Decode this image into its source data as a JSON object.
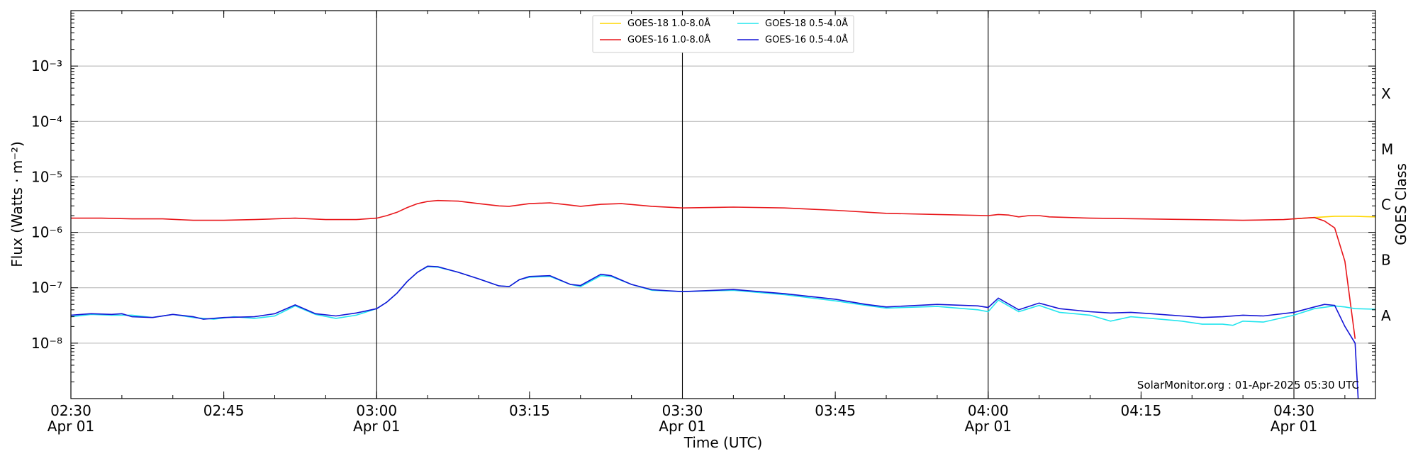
{
  "chart_data": {
    "type": "line",
    "ylabel": "Flux (Watts · m⁻²)",
    "xlabel": "Time (UTC)",
    "right_axis_title": "GOES Class",
    "credit": "SolarMonitor.org : 01-Apr-2025 05:30 UTC",
    "y_scale": "log",
    "ylim": [
      1e-09,
      0.01
    ],
    "y_ticks": [
      {
        "value": 1e-08,
        "label": "10⁻⁸"
      },
      {
        "value": 1e-07,
        "label": "10⁻⁷"
      },
      {
        "value": 1e-06,
        "label": "10⁻⁶"
      },
      {
        "value": 1e-05,
        "label": "10⁻⁵"
      },
      {
        "value": 0.0001,
        "label": "10⁻⁴"
      },
      {
        "value": 0.001,
        "label": "10⁻³"
      }
    ],
    "goes_classes": [
      {
        "label": "A",
        "value": 3.16e-08
      },
      {
        "label": "B",
        "value": 3.16e-07
      },
      {
        "label": "C",
        "value": 3.16e-06
      },
      {
        "label": "M",
        "value": 3.16e-05
      },
      {
        "label": "X",
        "value": 0.000316
      }
    ],
    "xlim": [
      "02:30",
      "04:38"
    ],
    "x_ticks": [
      {
        "time": "02:30",
        "line1": "02:30",
        "line2": "Apr 01"
      },
      {
        "time": "02:45",
        "line1": "02:45",
        "line2": ""
      },
      {
        "time": "03:00",
        "line1": "03:00",
        "line2": "Apr 01"
      },
      {
        "time": "03:15",
        "line1": "03:15",
        "line2": ""
      },
      {
        "time": "03:30",
        "line1": "03:30",
        "line2": "Apr 01"
      },
      {
        "time": "03:45",
        "line1": "03:45",
        "line2": ""
      },
      {
        "time": "04:00",
        "line1": "04:00",
        "line2": "Apr 01"
      },
      {
        "time": "04:15",
        "line1": "04:15",
        "line2": ""
      },
      {
        "time": "04:30",
        "line1": "04:30",
        "line2": "Apr 01"
      }
    ],
    "vertical_lines": [
      "03:00",
      "03:30",
      "04:00",
      "04:30"
    ],
    "grid": "horizontal at each decade",
    "legend_placement": "top-center",
    "series": [
      {
        "name": "GOES-18 1.0-8.0Å",
        "color": "#ffd700",
        "points": [
          [
            "04:30",
            1.75e-06
          ],
          [
            "04:31",
            1.8e-06
          ],
          [
            "04:32",
            1.85e-06
          ],
          [
            "04:33",
            1.9e-06
          ],
          [
            "04:34",
            1.95e-06
          ],
          [
            "04:35",
            1.95e-06
          ],
          [
            "04:36",
            1.95e-06
          ],
          [
            "04:37",
            1.92e-06
          ],
          [
            "04:38",
            1.9e-06
          ]
        ]
      },
      {
        "name": "GOES-16 1.0-8.0Å",
        "color": "#e8161a",
        "points": [
          [
            "02:30",
            1.8e-06
          ],
          [
            "02:33",
            1.8e-06
          ],
          [
            "02:36",
            1.75e-06
          ],
          [
            "02:39",
            1.75e-06
          ],
          [
            "02:42",
            1.65e-06
          ],
          [
            "02:45",
            1.65e-06
          ],
          [
            "02:48",
            1.7e-06
          ],
          [
            "02:50",
            1.75e-06
          ],
          [
            "02:52",
            1.8e-06
          ],
          [
            "02:55",
            1.7e-06
          ],
          [
            "02:58",
            1.7e-06
          ],
          [
            "03:00",
            1.8e-06
          ],
          [
            "03:01",
            2e-06
          ],
          [
            "03:02",
            2.3e-06
          ],
          [
            "03:03",
            2.8e-06
          ],
          [
            "03:04",
            3.3e-06
          ],
          [
            "03:05",
            3.6e-06
          ],
          [
            "03:06",
            3.75e-06
          ],
          [
            "03:08",
            3.65e-06
          ],
          [
            "03:10",
            3.3e-06
          ],
          [
            "03:12",
            3e-06
          ],
          [
            "03:13",
            2.95e-06
          ],
          [
            "03:15",
            3.3e-06
          ],
          [
            "03:17",
            3.4e-06
          ],
          [
            "03:19",
            3.1e-06
          ],
          [
            "03:20",
            2.95e-06
          ],
          [
            "03:22",
            3.2e-06
          ],
          [
            "03:24",
            3.3e-06
          ],
          [
            "03:27",
            2.95e-06
          ],
          [
            "03:30",
            2.75e-06
          ],
          [
            "03:35",
            2.85e-06
          ],
          [
            "03:40",
            2.75e-06
          ],
          [
            "03:45",
            2.5e-06
          ],
          [
            "03:50",
            2.2e-06
          ],
          [
            "03:55",
            2.1e-06
          ],
          [
            "04:00",
            2e-06
          ],
          [
            "04:01",
            2.1e-06
          ],
          [
            "04:02",
            2.05e-06
          ],
          [
            "04:03",
            1.9e-06
          ],
          [
            "04:04",
            2e-06
          ],
          [
            "04:05",
            2e-06
          ],
          [
            "04:06",
            1.9e-06
          ],
          [
            "04:10",
            1.8e-06
          ],
          [
            "04:15",
            1.75e-06
          ],
          [
            "04:20",
            1.7e-06
          ],
          [
            "04:25",
            1.65e-06
          ],
          [
            "04:29",
            1.7e-06
          ],
          [
            "04:31",
            1.8e-06
          ],
          [
            "04:32",
            1.85e-06
          ],
          [
            "04:33",
            1.6e-06
          ],
          [
            "04:34",
            1.2e-06
          ],
          [
            "04:35",
            3e-07
          ],
          [
            "04:35.5",
            6e-08
          ],
          [
            "04:36",
            1.2e-08
          ]
        ]
      },
      {
        "name": "GOES-18 0.5-4.0Å",
        "color": "#22e5ee",
        "points": [
          [
            "02:30",
            3e-08
          ],
          [
            "02:32",
            3.3e-08
          ],
          [
            "02:34",
            3.2e-08
          ],
          [
            "02:36",
            3.2e-08
          ],
          [
            "02:38",
            2.9e-08
          ],
          [
            "02:40",
            3.3e-08
          ],
          [
            "02:42",
            2.9e-08
          ],
          [
            "02:44",
            2.7e-08
          ],
          [
            "02:46",
            3e-08
          ],
          [
            "02:48",
            2.8e-08
          ],
          [
            "02:50",
            3.1e-08
          ],
          [
            "02:52",
            4.7e-08
          ],
          [
            "02:54",
            3.3e-08
          ],
          [
            "02:56",
            2.8e-08
          ],
          [
            "02:58",
            3.2e-08
          ],
          [
            "03:00",
            4.2e-08
          ],
          [
            "03:01",
            5.5e-08
          ],
          [
            "03:02",
            8e-08
          ],
          [
            "03:03",
            1.3e-07
          ],
          [
            "03:04",
            1.9e-07
          ],
          [
            "03:05",
            2.4e-07
          ],
          [
            "03:06",
            2.35e-07
          ],
          [
            "03:08",
            1.9e-07
          ],
          [
            "03:10",
            1.45e-07
          ],
          [
            "03:12",
            1.08e-07
          ],
          [
            "03:13",
            1.05e-07
          ],
          [
            "03:14",
            1.4e-07
          ],
          [
            "03:15",
            1.55e-07
          ],
          [
            "03:17",
            1.6e-07
          ],
          [
            "03:19",
            1.15e-07
          ],
          [
            "03:20",
            1.05e-07
          ],
          [
            "03:22",
            1.65e-07
          ],
          [
            "03:23",
            1.6e-07
          ],
          [
            "03:25",
            1.15e-07
          ],
          [
            "03:27",
            9e-08
          ],
          [
            "03:30",
            8.5e-08
          ],
          [
            "03:35",
            9e-08
          ],
          [
            "03:40",
            7.5e-08
          ],
          [
            "03:45",
            5.8e-08
          ],
          [
            "03:48",
            4.8e-08
          ],
          [
            "03:50",
            4.3e-08
          ],
          [
            "03:55",
            4.6e-08
          ],
          [
            "03:59",
            4e-08
          ],
          [
            "04:00",
            3.7e-08
          ],
          [
            "04:01",
            6e-08
          ],
          [
            "04:03",
            3.7e-08
          ],
          [
            "04:05",
            4.8e-08
          ],
          [
            "04:07",
            3.6e-08
          ],
          [
            "04:10",
            3.2e-08
          ],
          [
            "04:12",
            2.5e-08
          ],
          [
            "04:14",
            3e-08
          ],
          [
            "04:16",
            2.8e-08
          ],
          [
            "04:19",
            2.5e-08
          ],
          [
            "04:21",
            2.2e-08
          ],
          [
            "04:23",
            2.2e-08
          ],
          [
            "04:24",
            2.1e-08
          ],
          [
            "04:25",
            2.5e-08
          ],
          [
            "04:27",
            2.4e-08
          ],
          [
            "04:30",
            3.2e-08
          ],
          [
            "04:32",
            4.2e-08
          ],
          [
            "04:34",
            4.7e-08
          ],
          [
            "04:35",
            4.5e-08
          ],
          [
            "04:36",
            4.2e-08
          ],
          [
            "04:38",
            4.1e-08
          ]
        ]
      },
      {
        "name": "GOES-16 0.5-4.0Å",
        "color": "#1414d6",
        "points": [
          [
            "02:30",
            3.2e-08
          ],
          [
            "02:32",
            3.4e-08
          ],
          [
            "02:34",
            3.3e-08
          ],
          [
            "02:35",
            3.4e-08
          ],
          [
            "02:36",
            3e-08
          ],
          [
            "02:38",
            2.9e-08
          ],
          [
            "02:40",
            3.3e-08
          ],
          [
            "02:42",
            3e-08
          ],
          [
            "02:43",
            2.7e-08
          ],
          [
            "02:45",
            2.9e-08
          ],
          [
            "02:48",
            3e-08
          ],
          [
            "02:50",
            3.4e-08
          ],
          [
            "02:52",
            4.9e-08
          ],
          [
            "02:54",
            3.4e-08
          ],
          [
            "02:56",
            3.1e-08
          ],
          [
            "02:58",
            3.5e-08
          ],
          [
            "03:00",
            4.2e-08
          ],
          [
            "03:01",
            5.5e-08
          ],
          [
            "03:02",
            8e-08
          ],
          [
            "03:03",
            1.3e-07
          ],
          [
            "03:04",
            1.9e-07
          ],
          [
            "03:05",
            2.45e-07
          ],
          [
            "03:06",
            2.4e-07
          ],
          [
            "03:08",
            1.9e-07
          ],
          [
            "03:10",
            1.45e-07
          ],
          [
            "03:12",
            1.08e-07
          ],
          [
            "03:13",
            1.05e-07
          ],
          [
            "03:14",
            1.4e-07
          ],
          [
            "03:15",
            1.6e-07
          ],
          [
            "03:17",
            1.65e-07
          ],
          [
            "03:19",
            1.15e-07
          ],
          [
            "03:20",
            1.1e-07
          ],
          [
            "03:22",
            1.75e-07
          ],
          [
            "03:23",
            1.65e-07
          ],
          [
            "03:25",
            1.15e-07
          ],
          [
            "03:27",
            9.2e-08
          ],
          [
            "03:30",
            8.5e-08
          ],
          [
            "03:35",
            9.3e-08
          ],
          [
            "03:40",
            7.8e-08
          ],
          [
            "03:45",
            6.2e-08
          ],
          [
            "03:48",
            5e-08
          ],
          [
            "03:50",
            4.5e-08
          ],
          [
            "03:55",
            5e-08
          ],
          [
            "03:59",
            4.7e-08
          ],
          [
            "04:00",
            4.4e-08
          ],
          [
            "04:01",
            6.5e-08
          ],
          [
            "04:03",
            4e-08
          ],
          [
            "04:05",
            5.3e-08
          ],
          [
            "04:07",
            4.2e-08
          ],
          [
            "04:10",
            3.7e-08
          ],
          [
            "04:12",
            3.5e-08
          ],
          [
            "04:14",
            3.6e-08
          ],
          [
            "04:16",
            3.4e-08
          ],
          [
            "04:19",
            3.1e-08
          ],
          [
            "04:21",
            2.9e-08
          ],
          [
            "04:23",
            3e-08
          ],
          [
            "04:25",
            3.2e-08
          ],
          [
            "04:27",
            3.1e-08
          ],
          [
            "04:30",
            3.6e-08
          ],
          [
            "04:32",
            4.5e-08
          ],
          [
            "04:33",
            5e-08
          ],
          [
            "04:34",
            4.8e-08
          ],
          [
            "04:35",
            2e-08
          ],
          [
            "04:36",
            1e-08
          ],
          [
            "04:36.3",
            1e-09
          ]
        ]
      }
    ]
  }
}
